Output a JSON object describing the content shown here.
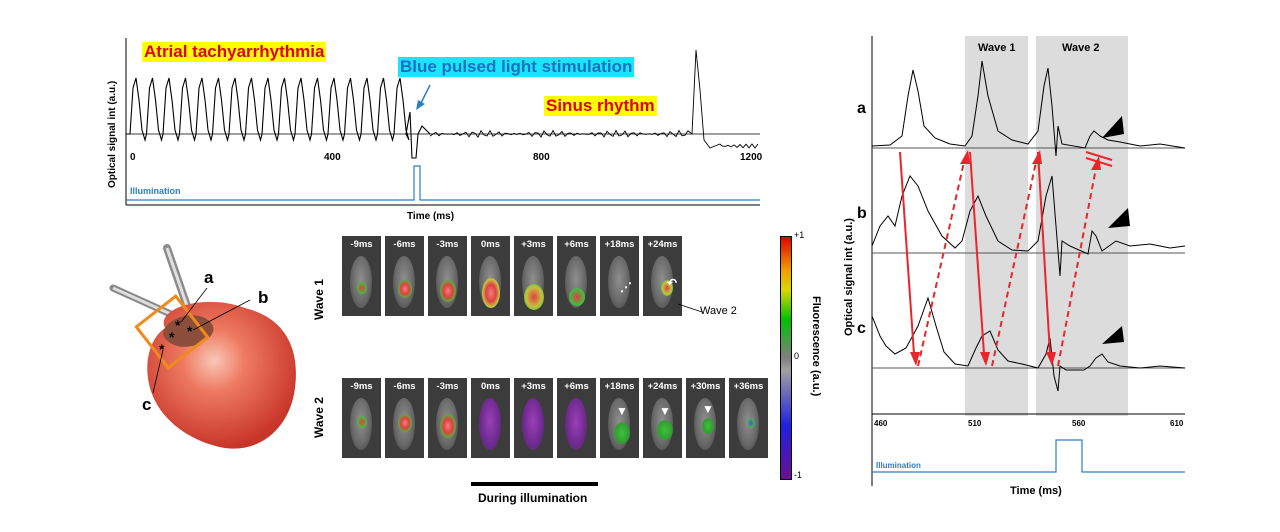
{
  "panel_top": {
    "title_atrial": "Atrial tachyarrhythmia",
    "title_stim": "Blue pulsed light stimulation",
    "title_sinus": "Sinus rhythm",
    "ylabel": "Optical signal int (a.u.)",
    "xlabel": "Time (ms)",
    "illumination": "Illumination",
    "ticks": [
      "0",
      "400",
      "800",
      "1200"
    ]
  },
  "heart": {
    "label_a": "a",
    "label_b": "b",
    "label_c": "c"
  },
  "frames": {
    "wave1_label": "Wave 1",
    "wave2_label": "Wave 2",
    "wave1_times": [
      "-9ms",
      "-6ms",
      "-3ms",
      "0ms",
      "+3ms",
      "+6ms",
      "+18ms",
      "+24ms"
    ],
    "wave2_times": [
      "-9ms",
      "-6ms",
      "-3ms",
      "0ms",
      "+3ms",
      "+6ms",
      "+18ms",
      "+24ms",
      "+30ms",
      "+36ms"
    ],
    "wave2_annotation": "Wave 2",
    "during_illumination": "During illumination",
    "colorbar_label": "Fluorescence (a.u.)",
    "colorbar_max": "+1",
    "colorbar_mid": "0",
    "colorbar_min": "-1"
  },
  "panel_right": {
    "wave1": "Wave 1",
    "wave2": "Wave 2",
    "trace_a": "a",
    "trace_b": "b",
    "trace_c": "c",
    "ylabel": "Optical signal int (a.u.)",
    "xlabel": "Time (ms)",
    "illumination": "Illumination",
    "ticks": [
      "460",
      "510",
      "560",
      "610"
    ]
  },
  "colors": {
    "red_arrow": "#e8262b",
    "illumination_line": "#2a7fc0",
    "highlight_yellow": "#ffff00",
    "highlight_cyan": "#17e6ff",
    "title_red": "#e0001b",
    "title_blue": "#1e6fc0",
    "heart": "#ea5a44",
    "orange_box": "#f08a1a"
  }
}
